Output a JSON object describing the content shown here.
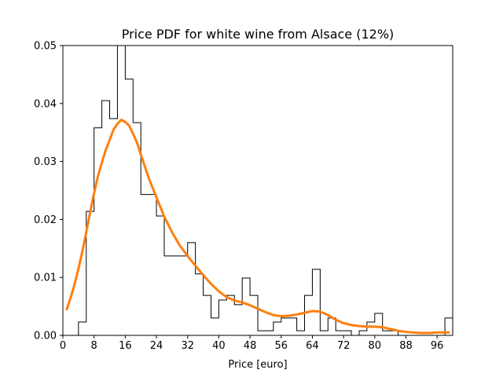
{
  "chart_data": {
    "type": "line",
    "title": "Price PDF for white wine from Alsace (12%)",
    "xlabel": "Price [euro]",
    "ylabel": "",
    "xlim": [
      0,
      100
    ],
    "ylim": [
      0,
      0.05
    ],
    "x_ticks": [
      "0",
      "8",
      "16",
      "24",
      "32",
      "40",
      "48",
      "56",
      "64",
      "72",
      "80",
      "88",
      "96"
    ],
    "y_ticks": [
      "0.00",
      "0.01",
      "0.02",
      "0.03",
      "0.04",
      "0.05"
    ],
    "grid": false,
    "colors": {
      "histogram": "#000000",
      "density": "#ff7f0e"
    },
    "histogram": {
      "bin_edges": [
        0,
        2,
        4,
        6,
        8,
        10,
        12,
        14,
        16,
        18,
        20,
        22,
        24,
        26,
        28,
        30,
        32,
        34,
        36,
        38,
        40,
        42,
        44,
        46,
        48,
        50,
        52,
        54,
        56,
        58,
        60,
        62,
        64,
        66,
        68,
        70,
        72,
        74,
        76,
        78,
        80,
        82,
        84,
        86,
        88,
        90,
        92,
        94,
        96,
        98,
        100
      ],
      "values": [
        0,
        0,
        0.0023,
        0.0214,
        0.0358,
        0.0405,
        0.0374,
        0.0505,
        0.0442,
        0.0367,
        0.0243,
        0.0243,
        0.0206,
        0.0137,
        0.0137,
        0.0137,
        0.016,
        0.0106,
        0.0069,
        0.003,
        0.0061,
        0.0069,
        0.0053,
        0.0099,
        0.0069,
        0.0008,
        0.0008,
        0.0023,
        0.003,
        0.003,
        0.0008,
        0.0069,
        0.0114,
        0.0008,
        0.003,
        0.0008,
        0.0008,
        0,
        0.0008,
        0.0023,
        0.0038,
        0.0008,
        0.0008,
        0,
        0,
        0,
        0,
        0,
        0,
        0.003
      ]
    },
    "series": [
      {
        "x": [
          1,
          2,
          3,
          4,
          5,
          6,
          7,
          8,
          9,
          10,
          11,
          12,
          13,
          14,
          15,
          16,
          17,
          18,
          19,
          20,
          21,
          22,
          23,
          24,
          26,
          28,
          30,
          32,
          34,
          36,
          38,
          40,
          42,
          44,
          46,
          48,
          50,
          52,
          54,
          56,
          58,
          60,
          62,
          64,
          66,
          68,
          70,
          72,
          74,
          76,
          78,
          80,
          82,
          84,
          86,
          88,
          90,
          92,
          94,
          96,
          98,
          99
        ],
        "y": [
          0.0045,
          0.0065,
          0.0088,
          0.0115,
          0.0145,
          0.0178,
          0.0213,
          0.0245,
          0.0275,
          0.0298,
          0.032,
          0.0337,
          0.0355,
          0.0365,
          0.0372,
          0.0368,
          0.0362,
          0.0348,
          0.0333,
          0.0312,
          0.0292,
          0.0272,
          0.0255,
          0.0238,
          0.0205,
          0.0178,
          0.0155,
          0.0137,
          0.012,
          0.0104,
          0.0089,
          0.0076,
          0.0066,
          0.006,
          0.0057,
          0.0052,
          0.0046,
          0.004,
          0.0035,
          0.0033,
          0.0034,
          0.0036,
          0.0039,
          0.0042,
          0.0041,
          0.0035,
          0.0027,
          0.0021,
          0.0018,
          0.0016,
          0.0015,
          0.0015,
          0.0014,
          0.0011,
          0.0008,
          0.0006,
          0.0005,
          0.0004,
          0.0004,
          0.0005,
          0.0005,
          0.0005
        ]
      }
    ]
  }
}
